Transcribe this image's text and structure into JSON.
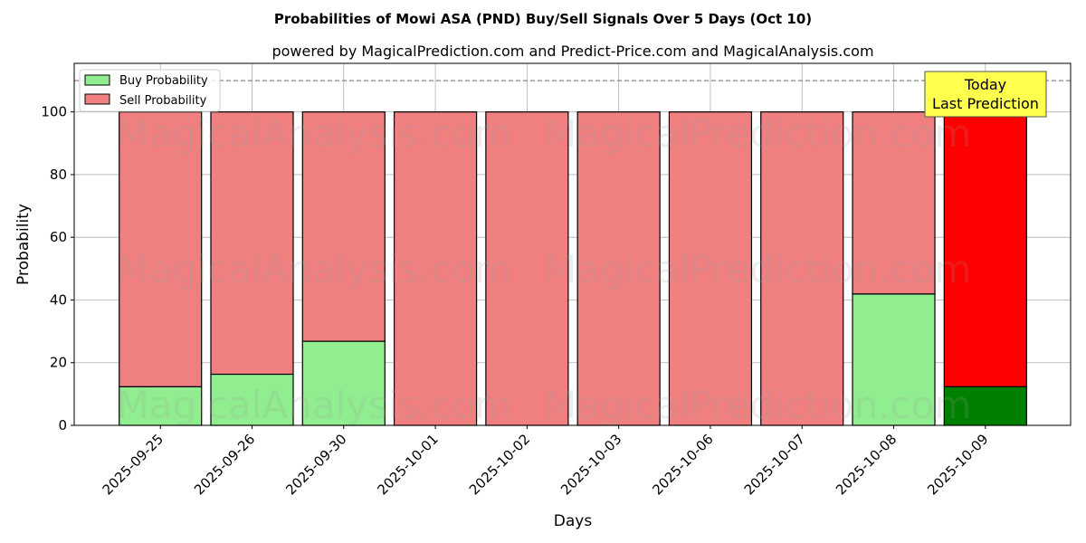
{
  "chart_data": {
    "type": "bar",
    "stacked": true,
    "title": "Probabilities of Mowi ASA (PND) Buy/Sell Signals Over 5 Days (Oct 10)",
    "subtitle": "powered by MagicalPrediction.com and Predict-Price.com and MagicalAnalysis.com",
    "xlabel": "Days",
    "ylabel": "Probability",
    "ylim": [
      0,
      115.5
    ],
    "yticks": [
      0,
      20,
      40,
      60,
      80,
      100
    ],
    "grid": true,
    "categories": [
      "2025-09-25",
      "2025-09-26",
      "2025-09-30",
      "2025-10-01",
      "2025-10-02",
      "2025-10-03",
      "2025-10-06",
      "2025-10-07",
      "2025-10-08",
      "2025-10-09"
    ],
    "series": [
      {
        "name": "Buy Probability",
        "values": [
          12.3,
          16.3,
          26.8,
          0,
          0,
          0,
          0,
          0,
          41.9,
          12.3
        ],
        "color": "#90ee90",
        "last_color": "#008000"
      },
      {
        "name": "Sell Probability",
        "values": [
          87.7,
          83.7,
          73.2,
          100,
          100,
          100,
          100,
          100,
          58.1,
          87.7
        ],
        "color": "#f08080",
        "last_color": "#ff0000"
      }
    ],
    "reference_line": 110,
    "legend_position": "top-left",
    "annotation": {
      "line1": "Today",
      "line2": "Last Prediction",
      "color": "#ffff4d"
    },
    "watermarks": [
      "MagicalAnalysis.com",
      "MagicalPrediction.com"
    ]
  }
}
